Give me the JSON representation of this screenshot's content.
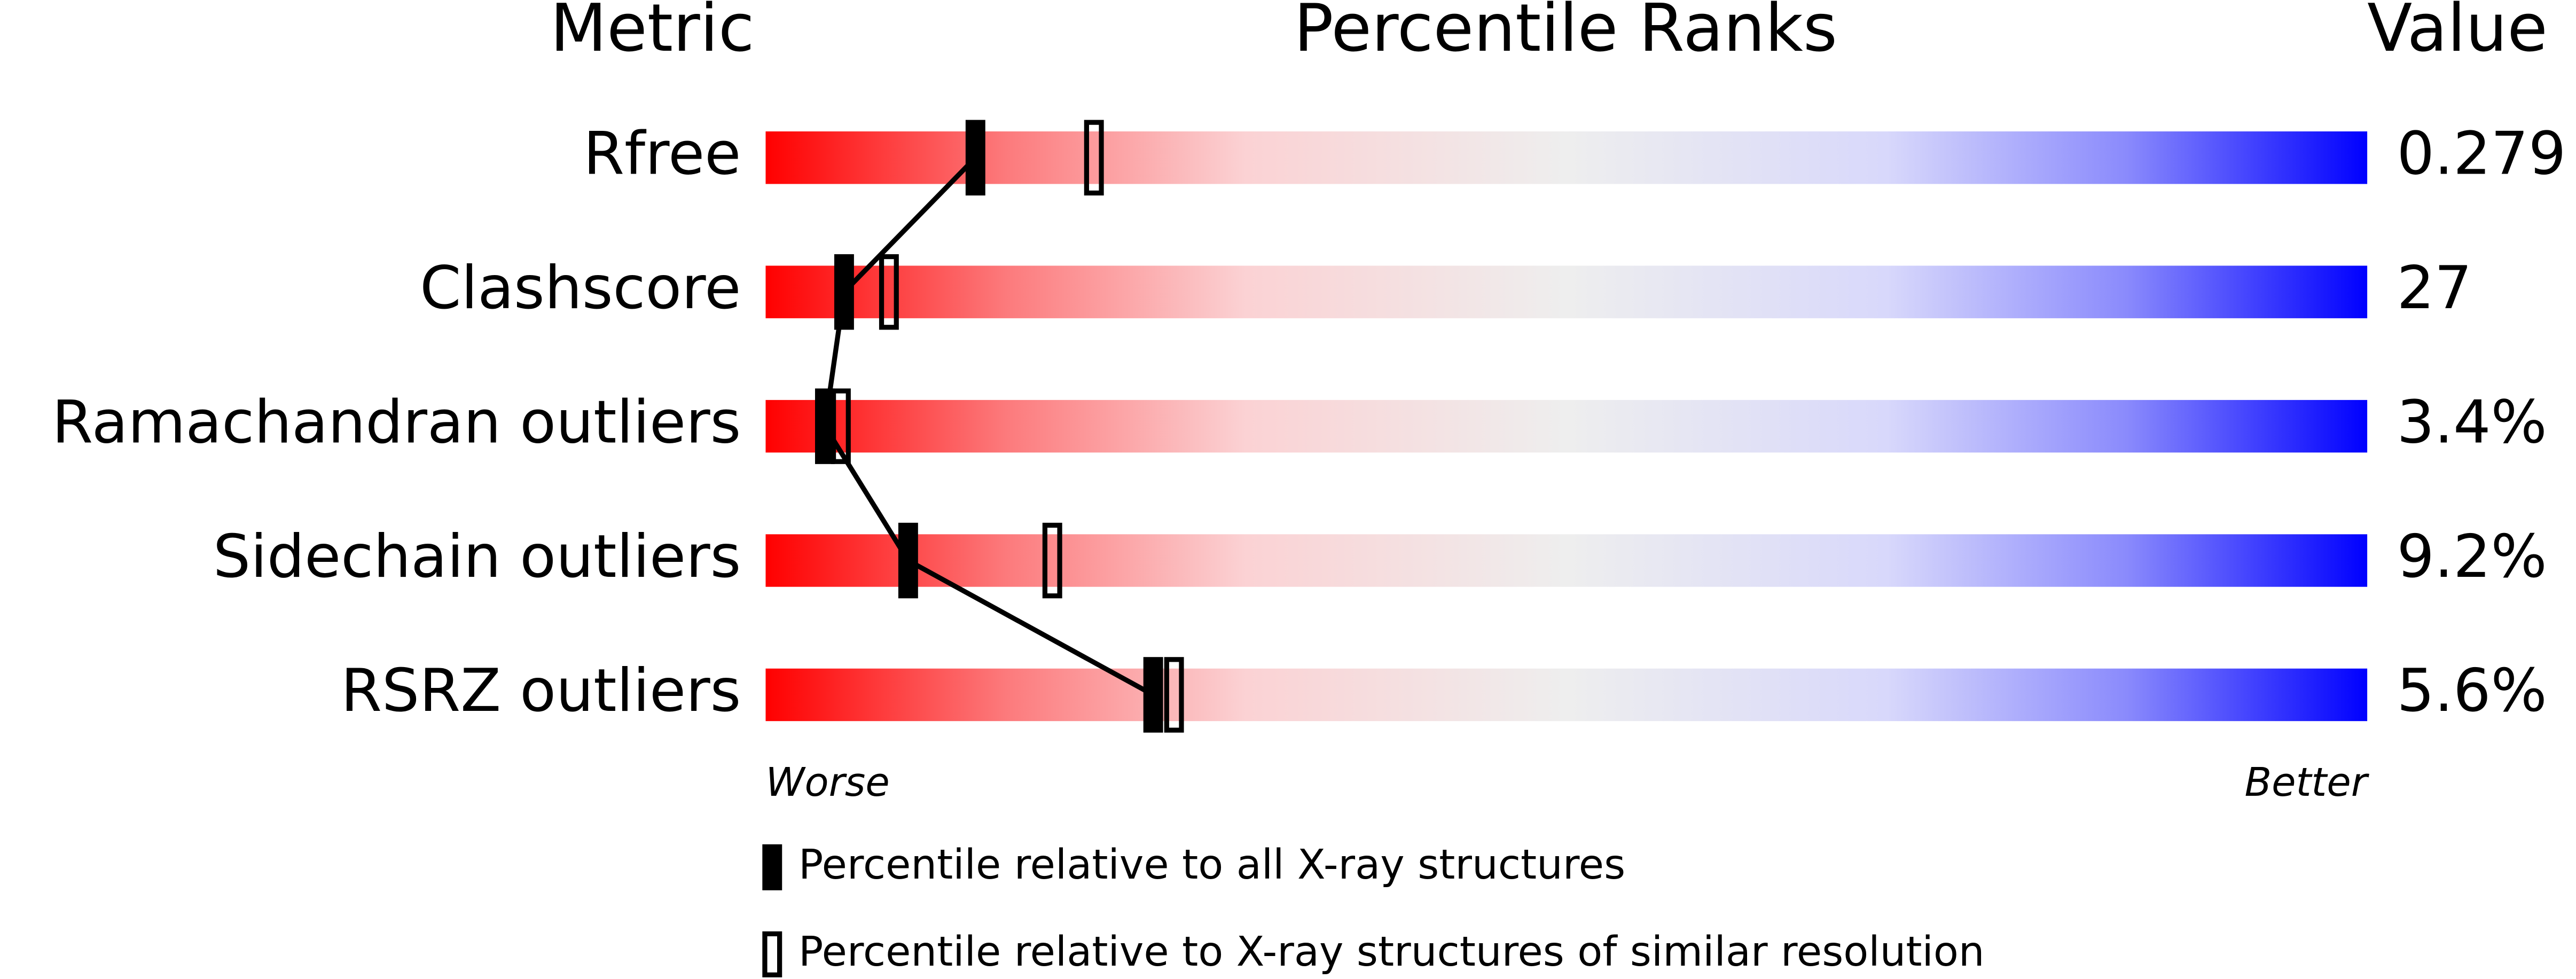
{
  "chart_data": {
    "type": "percentile",
    "column_headers": [
      "Metric",
      "Percentile Ranks",
      "Value"
    ],
    "categories": [
      "Rfree",
      "Clashscore",
      "Ramachandran outliers",
      "Sidechain outliers",
      "RSRZ outliers"
    ],
    "metric_values": [
      "0.279",
      "27",
      "3.4%",
      "9.2%",
      "5.6%"
    ],
    "axis_ends": [
      "Worse",
      "Better"
    ],
    "xlim": [
      0,
      100
    ],
    "series": [
      {
        "name": "Percentile relative to all X-ray structures",
        "color": "#000000",
        "filled": true,
        "values": [
          13.1,
          4.9,
          3.7,
          8.9,
          24.2
        ]
      },
      {
        "name": "Percentile relative to X-ray structures of similar resolution",
        "color": "#000000",
        "filled": false,
        "values": [
          20.5,
          7.7,
          4.7,
          17.9,
          25.5
        ]
      }
    ]
  }
}
